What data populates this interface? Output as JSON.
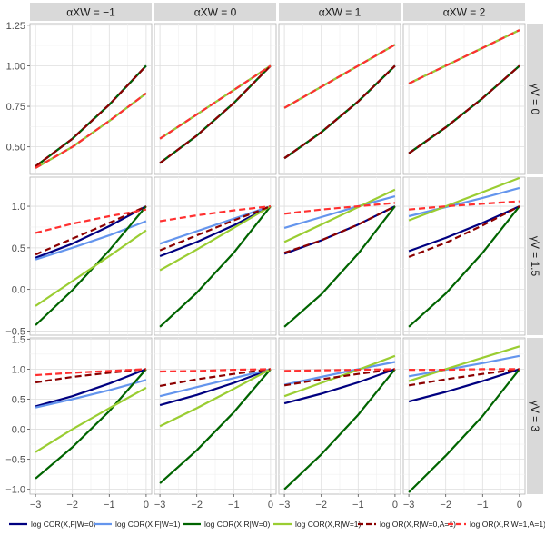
{
  "figure": {
    "col_strip_labels": [
      "αXW = −1",
      "αXW = 0",
      "αXW = 1",
      "αXW = 2"
    ],
    "row_strip_labels": [
      "γV = 0",
      "γV = 1.5",
      "γV = 3"
    ]
  },
  "chart_data": {
    "type": "line",
    "layout": "facet grid (3 rows x 4 columns)",
    "x": [
      -3,
      -2,
      -1,
      0
    ],
    "xlim": [
      -3,
      0
    ],
    "x_ticks": [
      -3,
      -2,
      -1,
      0
    ],
    "x_tick_labels": [
      "−3",
      "−2",
      "−1",
      "0"
    ],
    "legend_position": "bottom",
    "series": [
      {
        "key": "cor_f_w0",
        "name": "log COR(X,F|W=0)",
        "color": "#000080",
        "dashed": false
      },
      {
        "key": "cor_f_w1",
        "name": "log COR(X,F|W=1)",
        "color": "#6495ED",
        "dashed": false
      },
      {
        "key": "cor_r_w0",
        "name": "log COR(X,R|W=0)",
        "color": "#006400",
        "dashed": false
      },
      {
        "key": "cor_r_w1",
        "name": "log COR(X,R|W=1)",
        "color": "#9ACD32",
        "dashed": false
      },
      {
        "key": "or_r_w0",
        "name": "log OR(X,R|W=0,A=1)",
        "color": "#8B0000",
        "dashed": true
      },
      {
        "key": "or_r_w1",
        "name": "log OR(X,R|W=1,A=1)",
        "color": "#FF3030",
        "dashed": true
      }
    ],
    "rows": [
      {
        "label": "γV = 0",
        "ylim": [
          0.33,
          1.26
        ],
        "y_ticks": [
          0.5,
          0.75,
          1.0,
          1.25
        ],
        "y_tick_labels": [
          "0.50",
          "0.75",
          "1.00",
          "1.25"
        ],
        "panels": [
          {
            "col_label": "αXW = −1",
            "values": {
              "cor_f_w0": [
                0.38,
                0.55,
                0.76,
                1.0
              ],
              "cor_f_w1": [
                0.37,
                0.5,
                0.66,
                0.83
              ],
              "cor_r_w0": [
                0.38,
                0.55,
                0.76,
                1.0
              ],
              "cor_r_w1": [
                0.37,
                0.5,
                0.66,
                0.83
              ],
              "or_r_w0": [
                0.38,
                0.55,
                0.76,
                1.0
              ],
              "or_r_w1": [
                0.37,
                0.5,
                0.66,
                0.83
              ]
            }
          },
          {
            "col_label": "αXW = 0",
            "values": {
              "cor_f_w0": [
                0.4,
                0.57,
                0.77,
                1.0
              ],
              "cor_f_w1": [
                0.55,
                0.7,
                0.85,
                1.0
              ],
              "cor_r_w0": [
                0.4,
                0.57,
                0.77,
                1.0
              ],
              "cor_r_w1": [
                0.55,
                0.7,
                0.85,
                1.0
              ],
              "or_r_w0": [
                0.4,
                0.57,
                0.77,
                1.0
              ],
              "or_r_w1": [
                0.55,
                0.7,
                0.85,
                1.0
              ]
            }
          },
          {
            "col_label": "αXW = 1",
            "values": {
              "cor_f_w0": [
                0.43,
                0.59,
                0.78,
                1.0
              ],
              "cor_f_w1": [
                0.74,
                0.87,
                1.0,
                1.13
              ],
              "cor_r_w0": [
                0.43,
                0.59,
                0.78,
                1.0
              ],
              "cor_r_w1": [
                0.74,
                0.87,
                1.0,
                1.13
              ],
              "or_r_w0": [
                0.43,
                0.59,
                0.78,
                1.0
              ],
              "or_r_w1": [
                0.74,
                0.87,
                1.0,
                1.13
              ]
            }
          },
          {
            "col_label": "αXW = 2",
            "values": {
              "cor_f_w0": [
                0.46,
                0.62,
                0.8,
                1.0
              ],
              "cor_f_w1": [
                0.89,
                1.0,
                1.11,
                1.22
              ],
              "cor_r_w0": [
                0.46,
                0.62,
                0.8,
                1.0
              ],
              "cor_r_w1": [
                0.89,
                1.0,
                1.11,
                1.22
              ],
              "or_r_w0": [
                0.46,
                0.62,
                0.8,
                1.0
              ],
              "or_r_w1": [
                0.89,
                1.0,
                1.11,
                1.22
              ]
            }
          }
        ]
      },
      {
        "label": "γV = 1.5",
        "ylim": [
          -0.55,
          1.35
        ],
        "y_ticks": [
          -0.5,
          0.0,
          0.5,
          1.0
        ],
        "y_tick_labels": [
          "−0.5",
          "0.0",
          "0.5",
          "1.0"
        ],
        "panels": [
          {
            "col_label": "αXW = −1",
            "values": {
              "cor_f_w0": [
                0.38,
                0.55,
                0.76,
                1.0
              ],
              "cor_f_w1": [
                0.36,
                0.5,
                0.65,
                0.82
              ],
              "cor_r_w0": [
                -0.43,
                -0.01,
                0.47,
                1.0
              ],
              "cor_r_w1": [
                -0.2,
                0.1,
                0.4,
                0.71
              ],
              "or_r_w0": [
                0.42,
                0.61,
                0.8,
                1.0
              ],
              "or_r_w1": [
                0.68,
                0.79,
                0.88,
                0.96
              ]
            }
          },
          {
            "col_label": "αXW = 0",
            "values": {
              "cor_f_w0": [
                0.4,
                0.57,
                0.77,
                1.0
              ],
              "cor_f_w1": [
                0.55,
                0.7,
                0.85,
                1.0
              ],
              "cor_r_w0": [
                -0.45,
                -0.04,
                0.44,
                1.0
              ],
              "cor_r_w1": [
                0.23,
                0.48,
                0.74,
                1.0
              ],
              "or_r_w0": [
                0.47,
                0.65,
                0.83,
                1.0
              ],
              "or_r_w1": [
                0.82,
                0.89,
                0.95,
                1.0
              ]
            }
          },
          {
            "col_label": "αXW = 1",
            "values": {
              "cor_f_w0": [
                0.43,
                0.59,
                0.78,
                1.0
              ],
              "cor_f_w1": [
                0.74,
                0.87,
                1.0,
                1.12
              ],
              "cor_r_w0": [
                -0.45,
                -0.06,
                0.43,
                1.0
              ],
              "cor_r_w1": [
                0.57,
                0.78,
                0.99,
                1.2
              ],
              "or_r_w0": [
                0.44,
                0.59,
                0.78,
                1.0
              ],
              "or_r_w1": [
                0.91,
                0.96,
                1.0,
                1.04
              ]
            }
          },
          {
            "col_label": "αXW = 2",
            "values": {
              "cor_f_w0": [
                0.46,
                0.62,
                0.8,
                1.0
              ],
              "cor_f_w1": [
                0.88,
                0.99,
                1.1,
                1.22
              ],
              "cor_r_w0": [
                -0.45,
                -0.05,
                0.44,
                1.0
              ],
              "cor_r_w1": [
                0.83,
                1.0,
                1.17,
                1.34
              ],
              "or_r_w0": [
                0.39,
                0.56,
                0.77,
                1.0
              ],
              "or_r_w1": [
                0.96,
                1.0,
                1.03,
                1.06
              ]
            }
          }
        ]
      },
      {
        "label": "γV = 3",
        "ylim": [
          -1.08,
          1.52
        ],
        "y_ticks": [
          -1.0,
          -0.5,
          0.0,
          0.5,
          1.0,
          1.5
        ],
        "y_tick_labels": [
          "−1.0",
          "−0.5",
          "0.0",
          "0.5",
          "1.0",
          "1.5"
        ],
        "panels": [
          {
            "col_label": "αXW = −1",
            "values": {
              "cor_f_w0": [
                0.38,
                0.55,
                0.76,
                1.0
              ],
              "cor_f_w1": [
                0.36,
                0.5,
                0.65,
                0.82
              ],
              "cor_r_w0": [
                -0.82,
                -0.3,
                0.3,
                1.0
              ],
              "cor_r_w1": [
                -0.38,
                0.0,
                0.35,
                0.69
              ],
              "or_r_w0": [
                0.78,
                0.87,
                0.94,
                1.0
              ],
              "or_r_w1": [
                0.9,
                0.94,
                0.97,
                1.0
              ]
            }
          },
          {
            "col_label": "αXW = 0",
            "values": {
              "cor_f_w0": [
                0.4,
                0.57,
                0.77,
                1.0
              ],
              "cor_f_w1": [
                0.55,
                0.7,
                0.85,
                1.0
              ],
              "cor_r_w0": [
                -0.9,
                -0.35,
                0.28,
                1.0
              ],
              "cor_r_w1": [
                0.05,
                0.35,
                0.67,
                1.0
              ],
              "or_r_w0": [
                0.72,
                0.83,
                0.92,
                1.0
              ],
              "or_r_w1": [
                0.96,
                0.97,
                0.99,
                1.0
              ]
            }
          },
          {
            "col_label": "αXW = 1",
            "values": {
              "cor_f_w0": [
                0.43,
                0.59,
                0.78,
                1.0
              ],
              "cor_f_w1": [
                0.74,
                0.87,
                1.0,
                1.12
              ],
              "cor_r_w0": [
                -1.0,
                -0.42,
                0.24,
                1.0
              ],
              "cor_r_w1": [
                0.55,
                0.77,
                0.99,
                1.22
              ],
              "or_r_w0": [
                0.73,
                0.83,
                0.92,
                1.0
              ],
              "or_r_w1": [
                0.97,
                0.98,
                0.99,
                1.0
              ]
            }
          },
          {
            "col_label": "αXW = 2",
            "values": {
              "cor_f_w0": [
                0.46,
                0.62,
                0.8,
                1.0
              ],
              "cor_f_w1": [
                0.88,
                0.99,
                1.1,
                1.22
              ],
              "cor_r_w0": [
                -1.05,
                -0.44,
                0.22,
                1.0
              ],
              "cor_r_w1": [
                0.8,
                1.0,
                1.19,
                1.38
              ],
              "or_r_w0": [
                0.73,
                0.83,
                0.92,
                1.0
              ],
              "or_r_w1": [
                0.99,
                0.99,
                1.0,
                1.0
              ]
            }
          }
        ]
      }
    ]
  }
}
